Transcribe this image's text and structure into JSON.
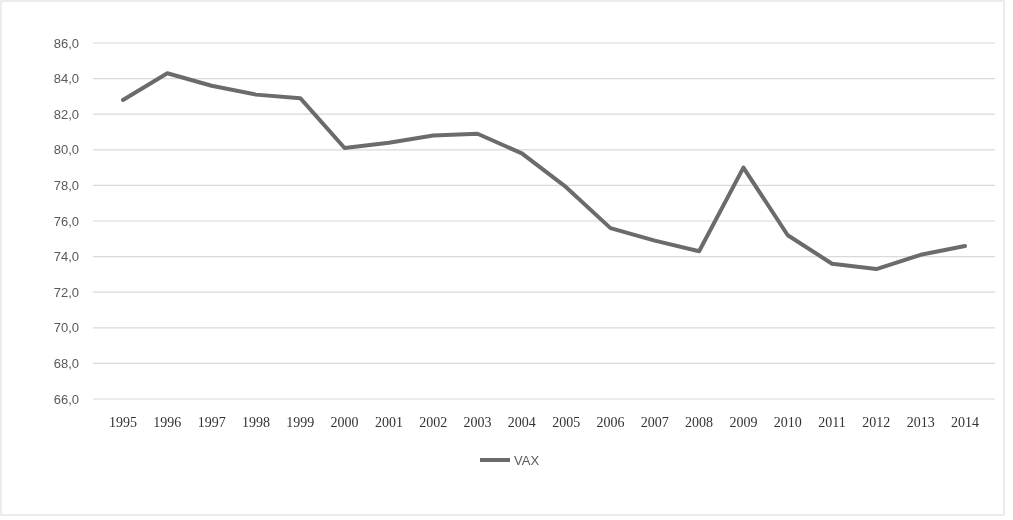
{
  "chart_data": {
    "type": "line",
    "categories": [
      "1995",
      "1996",
      "1997",
      "1998",
      "1999",
      "2000",
      "2001",
      "2002",
      "2003",
      "2004",
      "2005",
      "2006",
      "2007",
      "2008",
      "2009",
      "2010",
      "2011",
      "2012",
      "2013",
      "2014"
    ],
    "series": [
      {
        "name": "VAX",
        "color": "#6b6b6b",
        "values": [
          82.8,
          84.3,
          83.6,
          83.1,
          82.9,
          80.1,
          80.4,
          80.8,
          80.9,
          79.8,
          77.9,
          75.6,
          74.9,
          74.3,
          79.0,
          75.2,
          73.6,
          73.3,
          74.1,
          74.6
        ]
      }
    ],
    "ylim": [
      66,
      86
    ],
    "yticks": [
      {
        "value": 66,
        "label": "66,0"
      },
      {
        "value": 68,
        "label": "68,0"
      },
      {
        "value": 70,
        "label": "70,0"
      },
      {
        "value": 72,
        "label": "72,0"
      },
      {
        "value": 74,
        "label": "74,0"
      },
      {
        "value": 76,
        "label": "76,0"
      },
      {
        "value": 78,
        "label": "78,0"
      },
      {
        "value": 80,
        "label": "80,0"
      },
      {
        "value": 82,
        "label": "82,0"
      },
      {
        "value": 84,
        "label": "84,0"
      },
      {
        "value": 86,
        "label": "86,0"
      }
    ],
    "grid": "y",
    "legend": "bottom",
    "marker": "none",
    "line_style": "solid"
  }
}
